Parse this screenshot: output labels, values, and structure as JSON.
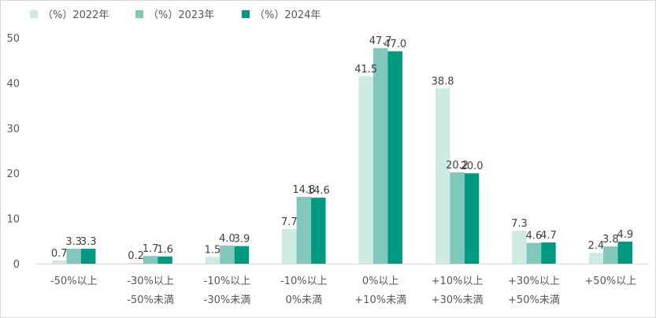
{
  "chart_data": {
    "type": "bar",
    "title": "",
    "xlabel": "",
    "ylabel": "",
    "ylim": [
      0,
      50
    ],
    "yticks": [
      0,
      10,
      20,
      30,
      40,
      50
    ],
    "grid": false,
    "legend_position": "top-left",
    "categories": [
      [
        "-50%以上"
      ],
      [
        "-30%以上",
        "-50%未満"
      ],
      [
        "-10%以上",
        "-30%未満"
      ],
      [
        "-10%以上",
        "0%未満"
      ],
      [
        "0%以上",
        "+10%未満"
      ],
      [
        "+10%以上",
        "+30%未満"
      ],
      [
        "+30%以上",
        "+50%未満"
      ],
      [
        "+50%以上"
      ]
    ],
    "series": [
      {
        "name": "（%）2022年",
        "color": "#cdeae3",
        "values": [
          0.7,
          0.2,
          1.5,
          7.7,
          41.5,
          38.8,
          7.3,
          2.4
        ]
      },
      {
        "name": "（%）2023年",
        "color": "#7fc8bb",
        "values": [
          3.3,
          1.7,
          4.0,
          14.8,
          47.7,
          20.2,
          4.6,
          3.8
        ]
      },
      {
        "name": "（%）2024年",
        "color": "#009a80",
        "values": [
          3.3,
          1.6,
          3.9,
          14.6,
          47.0,
          20.0,
          4.7,
          4.9
        ]
      }
    ]
  }
}
